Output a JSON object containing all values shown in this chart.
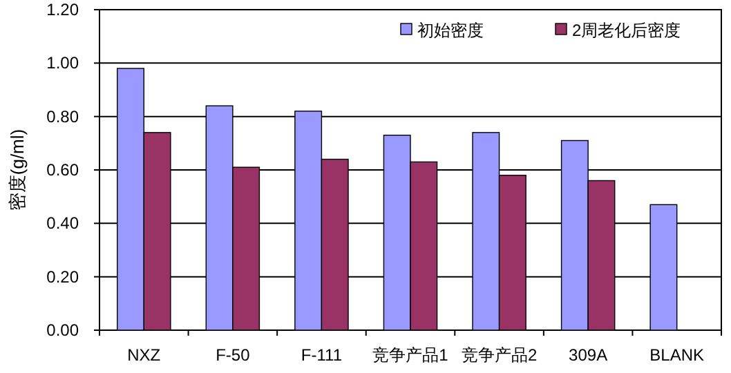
{
  "chart_data": {
    "type": "bar",
    "ylabel": "密度(g/ml)",
    "categories": [
      "NXZ",
      "F-50",
      "F-111",
      "竞争产品1",
      "竞争产品2",
      "309A",
      "BLANK"
    ],
    "series": [
      {
        "name": "初始密度",
        "color": "#9999ff",
        "values": [
          0.98,
          0.84,
          0.82,
          0.73,
          0.74,
          0.71,
          0.47
        ]
      },
      {
        "name": "2周老化后密度",
        "color": "#993366",
        "values": [
          0.74,
          0.61,
          0.64,
          0.63,
          0.58,
          0.56,
          null
        ]
      }
    ],
    "ylim": [
      0,
      1.2
    ],
    "yticks": [
      {
        "value": 0,
        "label": "0.00"
      },
      {
        "value": 0.2,
        "label": "0.20"
      },
      {
        "value": 0.4,
        "label": "0.40"
      },
      {
        "value": 0.6,
        "label": "0.60"
      },
      {
        "value": 0.8,
        "label": "0.80"
      },
      {
        "value": 1.0,
        "label": "1.00"
      },
      {
        "value": 1.2,
        "label": "1.20"
      }
    ],
    "grid": "y",
    "legend": "top right"
  }
}
